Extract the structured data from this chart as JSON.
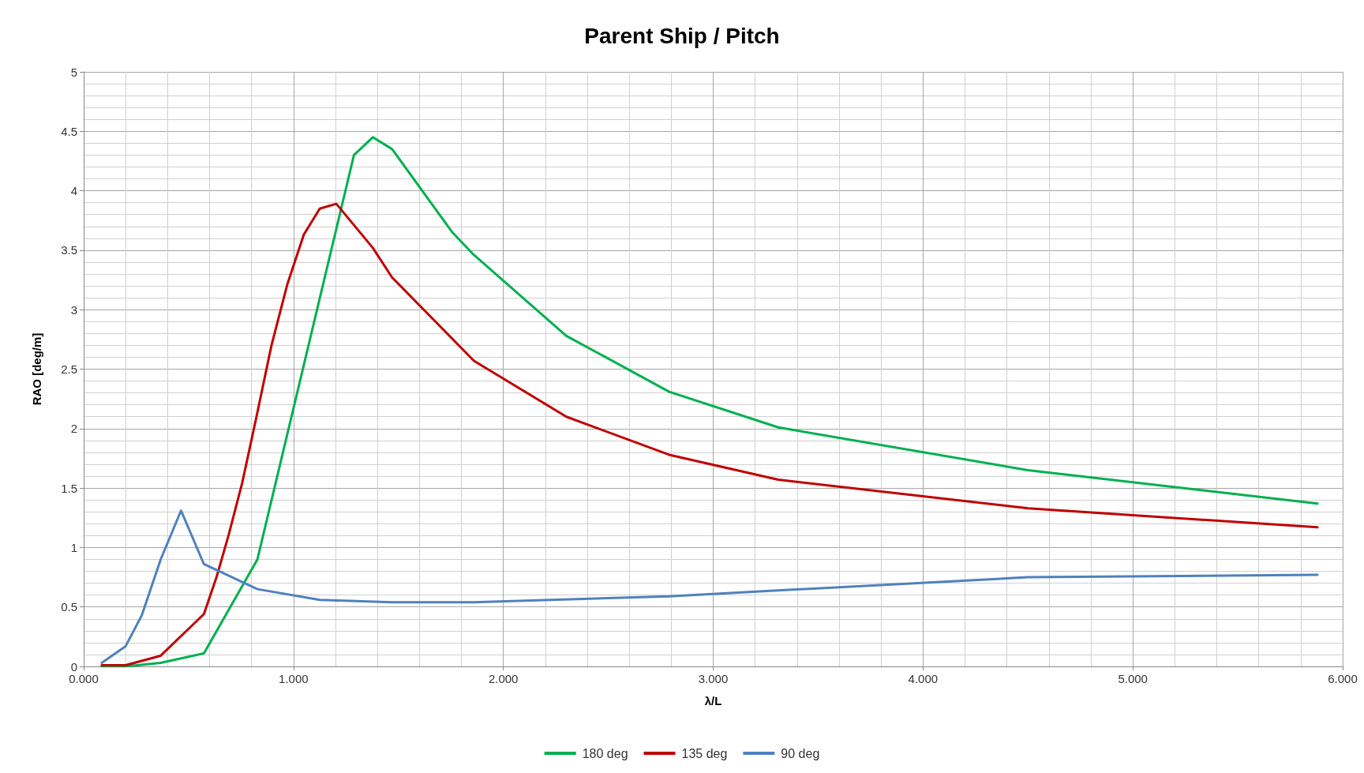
{
  "chart_data": {
    "type": "line",
    "title": "Parent Ship / Pitch",
    "xlabel": "λ/L",
    "ylabel": "RAO [deg/m]",
    "xlim": [
      0,
      6
    ],
    "xticks": [
      {
        "value": 0,
        "label": "0.000"
      },
      {
        "value": 1,
        "label": "1.000"
      },
      {
        "value": 2,
        "label": "2.000"
      },
      {
        "value": 3,
        "label": "3.000"
      },
      {
        "value": 4,
        "label": "4.000"
      },
      {
        "value": 5,
        "label": "5.000"
      },
      {
        "value": 6,
        "label": "6.000"
      }
    ],
    "ylim": [
      0,
      5
    ],
    "yticks": [
      0,
      0.5,
      1,
      1.5,
      2,
      2.5,
      3,
      3.5,
      4,
      4.5,
      5
    ],
    "grid": true,
    "legend": "bottom",
    "marker": "none",
    "line_style": "solid",
    "series": [
      {
        "name": "180 deg",
        "color": "#00b050",
        "x": [
          0.086,
          0.2,
          0.367,
          0.573,
          0.828,
          1.288,
          1.378,
          1.47,
          1.757,
          1.86,
          2.3,
          2.79,
          3.31,
          4.5,
          5.88
        ],
        "values": [
          0,
          0,
          0.03,
          0.11,
          0.9,
          4.3,
          4.45,
          4.35,
          3.65,
          3.46,
          2.78,
          2.31,
          2.01,
          1.65,
          1.37
        ]
      },
      {
        "name": "135 deg",
        "color": "#c00000",
        "x": [
          0.086,
          0.2,
          0.367,
          0.573,
          0.633,
          0.69,
          0.755,
          0.82,
          0.895,
          0.97,
          1.049,
          1.125,
          1.204,
          1.378,
          1.47,
          1.86,
          2.3,
          2.79,
          3.31,
          4.5,
          5.88
        ],
        "values": [
          0.01,
          0.01,
          0.09,
          0.44,
          0.75,
          1.1,
          1.54,
          2.07,
          2.7,
          3.21,
          3.63,
          3.85,
          3.89,
          3.52,
          3.27,
          2.57,
          2.1,
          1.78,
          1.57,
          1.33,
          1.17
        ]
      },
      {
        "name": "90 deg",
        "color": "#4f81bd",
        "x": [
          0.086,
          0.2,
          0.277,
          0.367,
          0.464,
          0.573,
          0.828,
          1.125,
          1.47,
          1.86,
          2.79,
          4.5,
          5.88
        ],
        "values": [
          0.03,
          0.17,
          0.43,
          0.9,
          1.31,
          0.86,
          0.65,
          0.56,
          0.54,
          0.54,
          0.59,
          0.75,
          0.77
        ]
      }
    ]
  }
}
